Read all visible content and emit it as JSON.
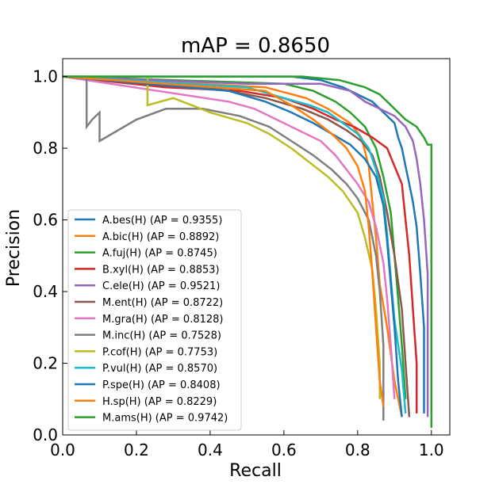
{
  "chart_data": {
    "type": "line",
    "title": "mAP = 0.8650",
    "xlabel": "Recall",
    "ylabel": "Precision",
    "xlim": [
      0.0,
      1.05
    ],
    "ylim": [
      0.0,
      1.05
    ],
    "xticks": [
      0.0,
      0.2,
      0.4,
      0.6,
      0.8,
      1.0
    ],
    "yticks": [
      0.0,
      0.2,
      0.4,
      0.6,
      0.8,
      1.0
    ],
    "xtick_labels": [
      "0.0",
      "0.2",
      "0.4",
      "0.6",
      "0.8",
      "1.0"
    ],
    "ytick_labels": [
      "0.0",
      "0.2",
      "0.4",
      "0.6",
      "0.8",
      "1.0"
    ],
    "grid": false,
    "legend_position": "lower-left",
    "series": [
      {
        "name": "A.bes(H) (AP = 0.9355)",
        "color": "#1f77b4",
        "points": [
          [
            0,
            1.0
          ],
          [
            0.62,
            1.0
          ],
          [
            0.7,
            0.99
          ],
          [
            0.76,
            0.97
          ],
          [
            0.8,
            0.95
          ],
          [
            0.84,
            0.93
          ],
          [
            0.86,
            0.91
          ],
          [
            0.88,
            0.89
          ],
          [
            0.9,
            0.87
          ],
          [
            0.91,
            0.83
          ],
          [
            0.92,
            0.8
          ],
          [
            0.93,
            0.75
          ],
          [
            0.94,
            0.7
          ],
          [
            0.95,
            0.65
          ],
          [
            0.96,
            0.58
          ],
          [
            0.97,
            0.45
          ],
          [
            0.98,
            0.3
          ],
          [
            0.98,
            0.06
          ]
        ]
      },
      {
        "name": "A.bic(H) (AP = 0.8892)",
        "color": "#ff7f0e",
        "points": [
          [
            0,
            1.0
          ],
          [
            0.55,
            0.97
          ],
          [
            0.66,
            0.94
          ],
          [
            0.72,
            0.91
          ],
          [
            0.78,
            0.87
          ],
          [
            0.81,
            0.83
          ],
          [
            0.83,
            0.75
          ],
          [
            0.84,
            0.65
          ],
          [
            0.85,
            0.55
          ],
          [
            0.86,
            0.42
          ],
          [
            0.88,
            0.3
          ],
          [
            0.9,
            0.15
          ],
          [
            0.92,
            0.05
          ]
        ]
      },
      {
        "name": "A.fuj(H) (AP = 0.8745)",
        "color": "#2ca02c",
        "points": [
          [
            0,
            1.0
          ],
          [
            0.6,
            0.98
          ],
          [
            0.68,
            0.96
          ],
          [
            0.74,
            0.93
          ],
          [
            0.78,
            0.9
          ],
          [
            0.82,
            0.86
          ],
          [
            0.85,
            0.8
          ],
          [
            0.87,
            0.72
          ],
          [
            0.89,
            0.62
          ],
          [
            0.9,
            0.5
          ],
          [
            0.91,
            0.38
          ],
          [
            0.92,
            0.25
          ],
          [
            0.93,
            0.1
          ]
        ]
      },
      {
        "name": "B.xyl(H) (AP = 0.8853)",
        "color": "#d62728",
        "points": [
          [
            0,
            1.0
          ],
          [
            0.28,
            0.97
          ],
          [
            0.48,
            0.96
          ],
          [
            0.6,
            0.94
          ],
          [
            0.68,
            0.91
          ],
          [
            0.74,
            0.88
          ],
          [
            0.79,
            0.86
          ],
          [
            0.84,
            0.83
          ],
          [
            0.88,
            0.8
          ],
          [
            0.9,
            0.75
          ],
          [
            0.92,
            0.7
          ],
          [
            0.93,
            0.6
          ],
          [
            0.94,
            0.5
          ],
          [
            0.95,
            0.35
          ],
          [
            0.96,
            0.2
          ],
          [
            0.96,
            0.06
          ]
        ]
      },
      {
        "name": "C.ele(H) (AP = 0.9521)",
        "color": "#9467bd",
        "points": [
          [
            0,
            1.0
          ],
          [
            0.5,
            0.98
          ],
          [
            0.7,
            0.98
          ],
          [
            0.78,
            0.96
          ],
          [
            0.82,
            0.93
          ],
          [
            0.86,
            0.91
          ],
          [
            0.9,
            0.89
          ],
          [
            0.93,
            0.86
          ],
          [
            0.95,
            0.82
          ],
          [
            0.96,
            0.77
          ],
          [
            0.97,
            0.7
          ],
          [
            0.98,
            0.6
          ],
          [
            0.99,
            0.45
          ],
          [
            0.99,
            0.3
          ],
          [
            0.99,
            0.05
          ]
        ]
      },
      {
        "name": "M.ent(H) (AP = 0.8722)",
        "color": "#8c564b",
        "points": [
          [
            0,
            1.0
          ],
          [
            0.4,
            0.97
          ],
          [
            0.55,
            0.94
          ],
          [
            0.65,
            0.91
          ],
          [
            0.72,
            0.88
          ],
          [
            0.77,
            0.85
          ],
          [
            0.81,
            0.82
          ],
          [
            0.84,
            0.78
          ],
          [
            0.86,
            0.72
          ],
          [
            0.88,
            0.62
          ],
          [
            0.9,
            0.5
          ],
          [
            0.92,
            0.35
          ],
          [
            0.93,
            0.2
          ],
          [
            0.94,
            0.05
          ]
        ]
      },
      {
        "name": "M.gra(H) (AP = 0.8128)",
        "color": "#e377c2",
        "points": [
          [
            0,
            1.0
          ],
          [
            0.45,
            0.93
          ],
          [
            0.52,
            0.91
          ],
          [
            0.58,
            0.88
          ],
          [
            0.64,
            0.85
          ],
          [
            0.7,
            0.82
          ],
          [
            0.74,
            0.78
          ],
          [
            0.77,
            0.74
          ],
          [
            0.8,
            0.7
          ],
          [
            0.83,
            0.65
          ],
          [
            0.85,
            0.58
          ],
          [
            0.87,
            0.48
          ],
          [
            0.88,
            0.38
          ],
          [
            0.89,
            0.25
          ],
          [
            0.9,
            0.1
          ]
        ]
      },
      {
        "name": "M.inc(H) (AP = 0.7528)",
        "color": "#7f7f7f",
        "points": [
          [
            0,
            1.0
          ],
          [
            0.065,
            1.0
          ],
          [
            0.065,
            0.86
          ],
          [
            0.08,
            0.88
          ],
          [
            0.1,
            0.9
          ],
          [
            0.1,
            0.82
          ],
          [
            0.15,
            0.85
          ],
          [
            0.2,
            0.88
          ],
          [
            0.28,
            0.91
          ],
          [
            0.38,
            0.91
          ],
          [
            0.48,
            0.89
          ],
          [
            0.56,
            0.86
          ],
          [
            0.62,
            0.82
          ],
          [
            0.68,
            0.78
          ],
          [
            0.73,
            0.74
          ],
          [
            0.77,
            0.7
          ],
          [
            0.8,
            0.66
          ],
          [
            0.83,
            0.6
          ],
          [
            0.85,
            0.5
          ],
          [
            0.86,
            0.4
          ],
          [
            0.87,
            0.25
          ],
          [
            0.87,
            0.04
          ]
        ]
      },
      {
        "name": "P.cof(H) (AP = 0.7753)",
        "color": "#bcbd22",
        "points": [
          [
            0,
            1.0
          ],
          [
            0.23,
            1.0
          ],
          [
            0.23,
            0.92
          ],
          [
            0.3,
            0.94
          ],
          [
            0.35,
            0.92
          ],
          [
            0.4,
            0.9
          ],
          [
            0.5,
            0.87
          ],
          [
            0.56,
            0.84
          ],
          [
            0.62,
            0.8
          ],
          [
            0.67,
            0.76
          ],
          [
            0.72,
            0.72
          ],
          [
            0.76,
            0.68
          ],
          [
            0.8,
            0.62
          ],
          [
            0.82,
            0.55
          ],
          [
            0.84,
            0.46
          ],
          [
            0.85,
            0.35
          ],
          [
            0.86,
            0.2
          ],
          [
            0.86,
            0.1
          ]
        ]
      },
      {
        "name": "P.vul(H) (AP = 0.8570)",
        "color": "#17becf",
        "points": [
          [
            0,
            1.0
          ],
          [
            0.5,
            0.97
          ],
          [
            0.6,
            0.94
          ],
          [
            0.67,
            0.92
          ],
          [
            0.72,
            0.9
          ],
          [
            0.76,
            0.87
          ],
          [
            0.8,
            0.84
          ],
          [
            0.83,
            0.8
          ],
          [
            0.85,
            0.74
          ],
          [
            0.87,
            0.66
          ],
          [
            0.88,
            0.56
          ],
          [
            0.89,
            0.44
          ],
          [
            0.9,
            0.32
          ],
          [
            0.92,
            0.18
          ],
          [
            0.93,
            0.06
          ]
        ]
      },
      {
        "name": "P.spe(H) (AP = 0.8408)",
        "color": "#1f77b4",
        "points": [
          [
            0,
            1.0
          ],
          [
            0.45,
            0.96
          ],
          [
            0.55,
            0.93
          ],
          [
            0.62,
            0.9
          ],
          [
            0.68,
            0.87
          ],
          [
            0.73,
            0.84
          ],
          [
            0.78,
            0.81
          ],
          [
            0.82,
            0.77
          ],
          [
            0.85,
            0.72
          ],
          [
            0.87,
            0.64
          ],
          [
            0.88,
            0.54
          ],
          [
            0.89,
            0.42
          ],
          [
            0.9,
            0.3
          ],
          [
            0.91,
            0.15
          ],
          [
            0.92,
            0.05
          ]
        ]
      },
      {
        "name": "H.sp(H) (AP = 0.8229)",
        "color": "#ff7f0e",
        "points": [
          [
            0,
            1.0
          ],
          [
            0.55,
            0.96
          ],
          [
            0.62,
            0.92
          ],
          [
            0.68,
            0.88
          ],
          [
            0.73,
            0.84
          ],
          [
            0.77,
            0.8
          ],
          [
            0.8,
            0.75
          ],
          [
            0.82,
            0.68
          ],
          [
            0.83,
            0.58
          ],
          [
            0.84,
            0.45
          ],
          [
            0.85,
            0.3
          ],
          [
            0.86,
            0.15
          ],
          [
            0.87,
            0.08
          ]
        ]
      },
      {
        "name": "M.ams(H) (AP = 0.9742)",
        "color": "#2ca02c",
        "points": [
          [
            0,
            1.0
          ],
          [
            0.65,
            1.0
          ],
          [
            0.75,
            0.99
          ],
          [
            0.82,
            0.97
          ],
          [
            0.86,
            0.95
          ],
          [
            0.9,
            0.91
          ],
          [
            0.93,
            0.88
          ],
          [
            0.96,
            0.86
          ],
          [
            0.98,
            0.83
          ],
          [
            0.99,
            0.81
          ],
          [
            1.0,
            0.81
          ],
          [
            1.0,
            0.02
          ]
        ]
      }
    ]
  }
}
